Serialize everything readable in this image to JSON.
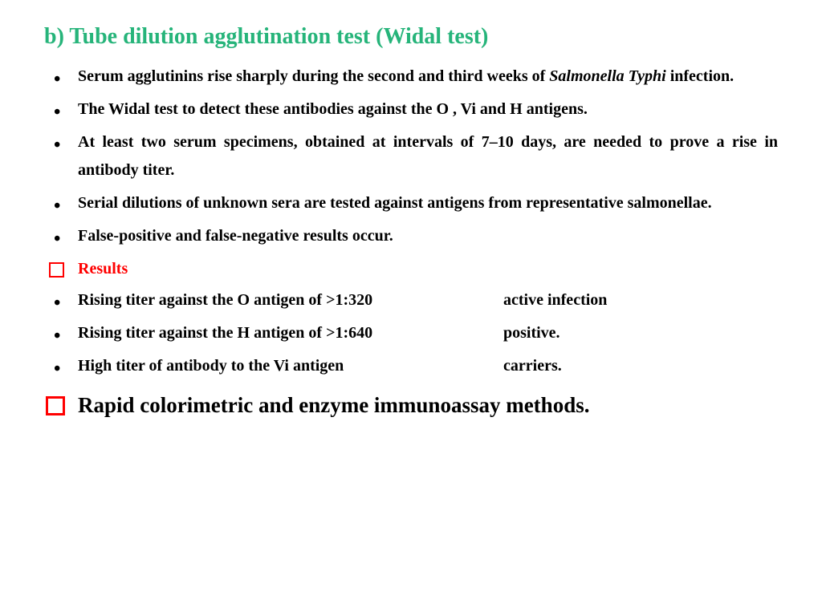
{
  "title": "b)  Tube dilution agglutination test (Widal test)",
  "colors": {
    "title": "#26b47a",
    "accent": "#ff0000",
    "text": "#000000",
    "background": "#ffffff"
  },
  "bullets": [
    {
      "pre": "Serum agglutinins rise sharply during the second and third weeks of ",
      "italic": "Salmonella Typhi",
      "post": " infection."
    },
    {
      "text": "The Widal test to detect these antibodies against the O , Vi and H antigens."
    },
    {
      "text": "At least two serum specimens, obtained at intervals of 7–10 days, are needed to prove a rise in antibody titer."
    },
    {
      "text": "Serial dilutions of unknown sera are tested against antigens from representative salmonellae."
    },
    {
      "text": "False-positive and false-negative results occur."
    }
  ],
  "results_header": "Results",
  "results": [
    {
      "left": "Rising titer against the O antigen of >1:320",
      "right": "active infection"
    },
    {
      "left": " Rising titer against the H antigen of >1:640",
      "right": "positive."
    },
    {
      "left": "High titer of antibody to the Vi antigen",
      "right": "carriers."
    }
  ],
  "footer": " Rapid colorimetric and enzyme immunoassay methods."
}
